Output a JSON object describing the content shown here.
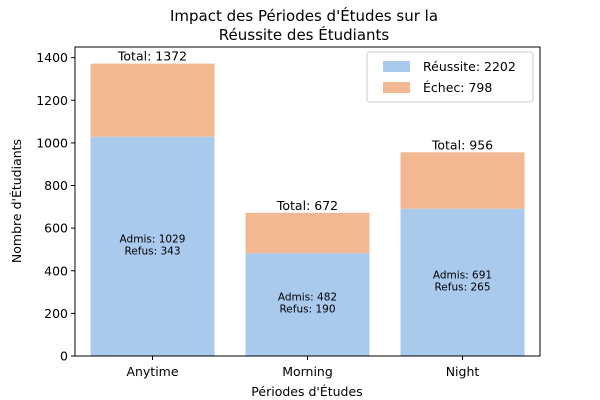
{
  "chart_data": {
    "type": "bar",
    "stacked": true,
    "title_lines": [
      "Impact des Périodes d'Études sur la",
      "Réussite des Étudiants"
    ],
    "xlabel": "Périodes d'Études",
    "ylabel": "Nombre d'Étudiants",
    "categories": [
      "Anytime",
      "Morning",
      "Night"
    ],
    "ylim": [
      0,
      1450
    ],
    "yticks": [
      0,
      200,
      400,
      600,
      800,
      1000,
      1200,
      1400
    ],
    "grid": false,
    "legend_position": "top-right",
    "series": [
      {
        "name": "Réussite: 2202",
        "values": [
          1029,
          482,
          691
        ],
        "color": "#a9c9ed"
      },
      {
        "name": "Échec: 798",
        "values": [
          343,
          190,
          265
        ],
        "color": "#f2b892"
      }
    ],
    "totals": [
      "Total: 1372",
      "Total: 672",
      "Total: 956"
    ],
    "bar_labels": [
      [
        "Admis: 1029",
        "Refus: 343"
      ],
      [
        "Admis: 482",
        "Refus: 190"
      ],
      [
        "Admis: 691",
        "Refus: 265"
      ]
    ]
  }
}
